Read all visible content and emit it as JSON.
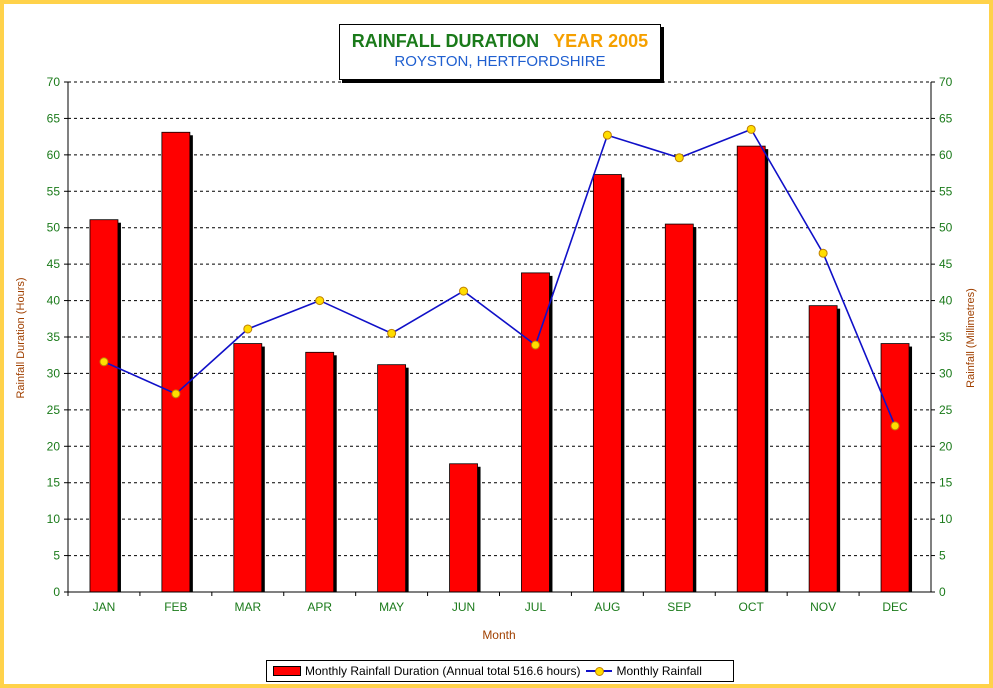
{
  "chart_data": {
    "type": "bar",
    "title": "RAINFALL DURATION",
    "title_year": "YEAR 2005",
    "subtitle": "ROYSTON, HERTFORDSHIRE",
    "xlabel": "Month",
    "ylabel_left": "Rainfall Duration (Hours)",
    "ylabel_right": "Rainfall (Millimetres)",
    "categories": [
      "JAN",
      "FEB",
      "MAR",
      "APR",
      "MAY",
      "JUN",
      "JUL",
      "AUG",
      "SEP",
      "OCT",
      "NOV",
      "DEC"
    ],
    "ylim": [
      0,
      70
    ],
    "yticks": [
      "0",
      "5",
      "10",
      "15",
      "20",
      "25",
      "30",
      "35",
      "40",
      "45",
      "50",
      "55",
      "60",
      "65",
      "70"
    ],
    "grid": true,
    "legend_position": "bottom",
    "series": [
      {
        "name": "Monthly Rainfall Duration (Annual total 516.6 hours)",
        "type": "bar",
        "axis": "left",
        "color": "#ff0000",
        "values": [
          51.1,
          63.1,
          34.1,
          32.9,
          31.2,
          17.6,
          43.8,
          57.3,
          50.5,
          61.2,
          39.3,
          34.1
        ]
      },
      {
        "name": "Monthly Rainfall",
        "type": "line",
        "axis": "right",
        "color": "#1010c8",
        "marker_color": "#ffdd00",
        "values": [
          31.6,
          27.2,
          36.1,
          40.0,
          35.5,
          41.3,
          33.9,
          62.7,
          59.6,
          63.5,
          46.5,
          22.8
        ]
      }
    ]
  },
  "colors": {
    "axis_text": "#1a7a1a",
    "axis_title": "#a04000",
    "border": "#ffd24a"
  }
}
